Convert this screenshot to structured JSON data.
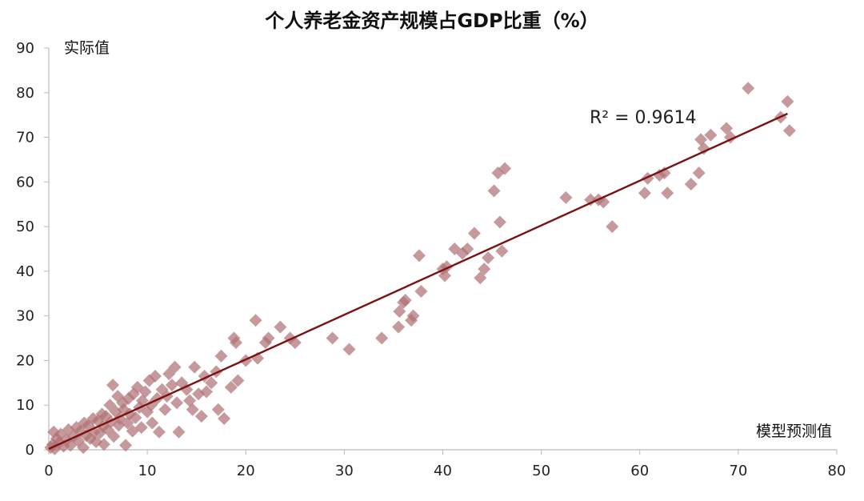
{
  "chart_data": {
    "type": "scatter",
    "title": "个人养老金资产规模占GDP比重（%）",
    "xlabel": "模型预测值",
    "ylabel": "实际值",
    "xlim": [
      0,
      80
    ],
    "ylim": [
      0,
      90
    ],
    "x_ticks": [
      0,
      10,
      20,
      30,
      40,
      50,
      60,
      70,
      80
    ],
    "y_ticks": [
      0,
      10,
      20,
      30,
      40,
      50,
      60,
      70,
      80,
      90
    ],
    "grid": false,
    "legend": "none",
    "annotation": "R² = 0.9614",
    "colors": {
      "points": "#b07276",
      "trendline": "#7a1212",
      "axis": "#bbbbbb"
    },
    "trendline": {
      "x": [
        0,
        75
      ],
      "y": [
        0.2,
        75.3
      ]
    },
    "points": [
      [
        0.2,
        0.5
      ],
      [
        0.4,
        1.2
      ],
      [
        0.6,
        0.2
      ],
      [
        0.8,
        2.5
      ],
      [
        1.0,
        1.5
      ],
      [
        1.2,
        3.5
      ],
      [
        0.5,
        4.0
      ],
      [
        1.5,
        0.8
      ],
      [
        1.8,
        2.2
      ],
      [
        2.0,
        4.5
      ],
      [
        2.2,
        1.0
      ],
      [
        2.5,
        3.0
      ],
      [
        2.8,
        5.0
      ],
      [
        3.0,
        2.0
      ],
      [
        3.2,
        4.2
      ],
      [
        3.5,
        0.5
      ],
      [
        3.6,
        6.0
      ],
      [
        3.8,
        3.2
      ],
      [
        4.0,
        5.5
      ],
      [
        4.2,
        2.5
      ],
      [
        4.5,
        7.0
      ],
      [
        4.6,
        4.0
      ],
      [
        4.8,
        1.8
      ],
      [
        5.0,
        6.5
      ],
      [
        5.2,
        3.8
      ],
      [
        5.4,
        8.0
      ],
      [
        5.5,
        5.2
      ],
      [
        5.6,
        1.2
      ],
      [
        5.8,
        7.5
      ],
      [
        6.0,
        4.5
      ],
      [
        6.2,
        10.0
      ],
      [
        6.3,
        6.2
      ],
      [
        6.5,
        14.5
      ],
      [
        6.6,
        3.0
      ],
      [
        6.8,
        8.5
      ],
      [
        7.0,
        12.0
      ],
      [
        7.1,
        5.5
      ],
      [
        7.2,
        7.0
      ],
      [
        7.5,
        10.5
      ],
      [
        7.6,
        9.0
      ],
      [
        7.8,
        1.0
      ],
      [
        8.0,
        6.0
      ],
      [
        8.1,
        11.5
      ],
      [
        8.2,
        8.0
      ],
      [
        8.5,
        4.2
      ],
      [
        8.6,
        12.5
      ],
      [
        8.8,
        7.2
      ],
      [
        9.0,
        14.0
      ],
      [
        9.2,
        9.5
      ],
      [
        9.4,
        5.0
      ],
      [
        9.5,
        11.0
      ],
      [
        9.8,
        13.0
      ],
      [
        10.0,
        8.5
      ],
      [
        10.2,
        15.5
      ],
      [
        10.4,
        10.0
      ],
      [
        10.5,
        6.0
      ],
      [
        10.8,
        16.5
      ],
      [
        11.0,
        11.5
      ],
      [
        11.2,
        4.0
      ],
      [
        11.5,
        13.5
      ],
      [
        11.8,
        9.0
      ],
      [
        12.0,
        12.0
      ],
      [
        12.2,
        17.0
      ],
      [
        12.5,
        14.5
      ],
      [
        12.8,
        18.5
      ],
      [
        13.0,
        10.5
      ],
      [
        13.2,
        4.0
      ],
      [
        13.5,
        15.0
      ],
      [
        14.0,
        13.5
      ],
      [
        14.3,
        11.0
      ],
      [
        14.6,
        9.0
      ],
      [
        14.8,
        18.5
      ],
      [
        15.2,
        12.5
      ],
      [
        15.5,
        7.5
      ],
      [
        15.8,
        16.5
      ],
      [
        16.0,
        13.0
      ],
      [
        16.5,
        15.0
      ],
      [
        17.0,
        17.5
      ],
      [
        17.2,
        9.0
      ],
      [
        17.5,
        21.0
      ],
      [
        17.8,
        7.0
      ],
      [
        18.5,
        14.0
      ],
      [
        18.8,
        25.0
      ],
      [
        19.0,
        24.0
      ],
      [
        19.2,
        15.5
      ],
      [
        20.0,
        20.0
      ],
      [
        21.0,
        29.0
      ],
      [
        21.2,
        20.5
      ],
      [
        22.0,
        24.0
      ],
      [
        22.3,
        25.0
      ],
      [
        23.5,
        27.5
      ],
      [
        24.5,
        25.0
      ],
      [
        25.0,
        24.0
      ],
      [
        28.8,
        25.0
      ],
      [
        30.5,
        22.5
      ],
      [
        33.8,
        25.0
      ],
      [
        35.5,
        27.5
      ],
      [
        35.6,
        31.0
      ],
      [
        36.0,
        33.0
      ],
      [
        36.2,
        33.5
      ],
      [
        36.8,
        29.0
      ],
      [
        37.0,
        30.0
      ],
      [
        37.6,
        43.5
      ],
      [
        37.8,
        35.5
      ],
      [
        40.0,
        40.5
      ],
      [
        40.2,
        39.0
      ],
      [
        40.4,
        41.0
      ],
      [
        41.2,
        45.0
      ],
      [
        42.0,
        44.0
      ],
      [
        42.5,
        45.0
      ],
      [
        43.2,
        48.5
      ],
      [
        43.8,
        38.5
      ],
      [
        44.2,
        40.5
      ],
      [
        44.6,
        43.0
      ],
      [
        45.2,
        58.0
      ],
      [
        45.6,
        62.0
      ],
      [
        45.8,
        51.0
      ],
      [
        46.0,
        44.5
      ],
      [
        46.3,
        63.0
      ],
      [
        52.5,
        56.5
      ],
      [
        55.0,
        56.0
      ],
      [
        55.8,
        56.0
      ],
      [
        56.3,
        55.5
      ],
      [
        57.2,
        50.0
      ],
      [
        60.5,
        57.5
      ],
      [
        60.8,
        60.8
      ],
      [
        62.0,
        61.5
      ],
      [
        62.5,
        62.0
      ],
      [
        62.8,
        57.5
      ],
      [
        65.2,
        59.5
      ],
      [
        66.0,
        62.0
      ],
      [
        66.2,
        69.5
      ],
      [
        66.5,
        67.5
      ],
      [
        67.2,
        70.5
      ],
      [
        68.8,
        72.0
      ],
      [
        69.2,
        70.0
      ],
      [
        71.0,
        81.0
      ],
      [
        74.3,
        74.5
      ],
      [
        75.0,
        78.0
      ],
      [
        75.2,
        71.5
      ]
    ]
  }
}
